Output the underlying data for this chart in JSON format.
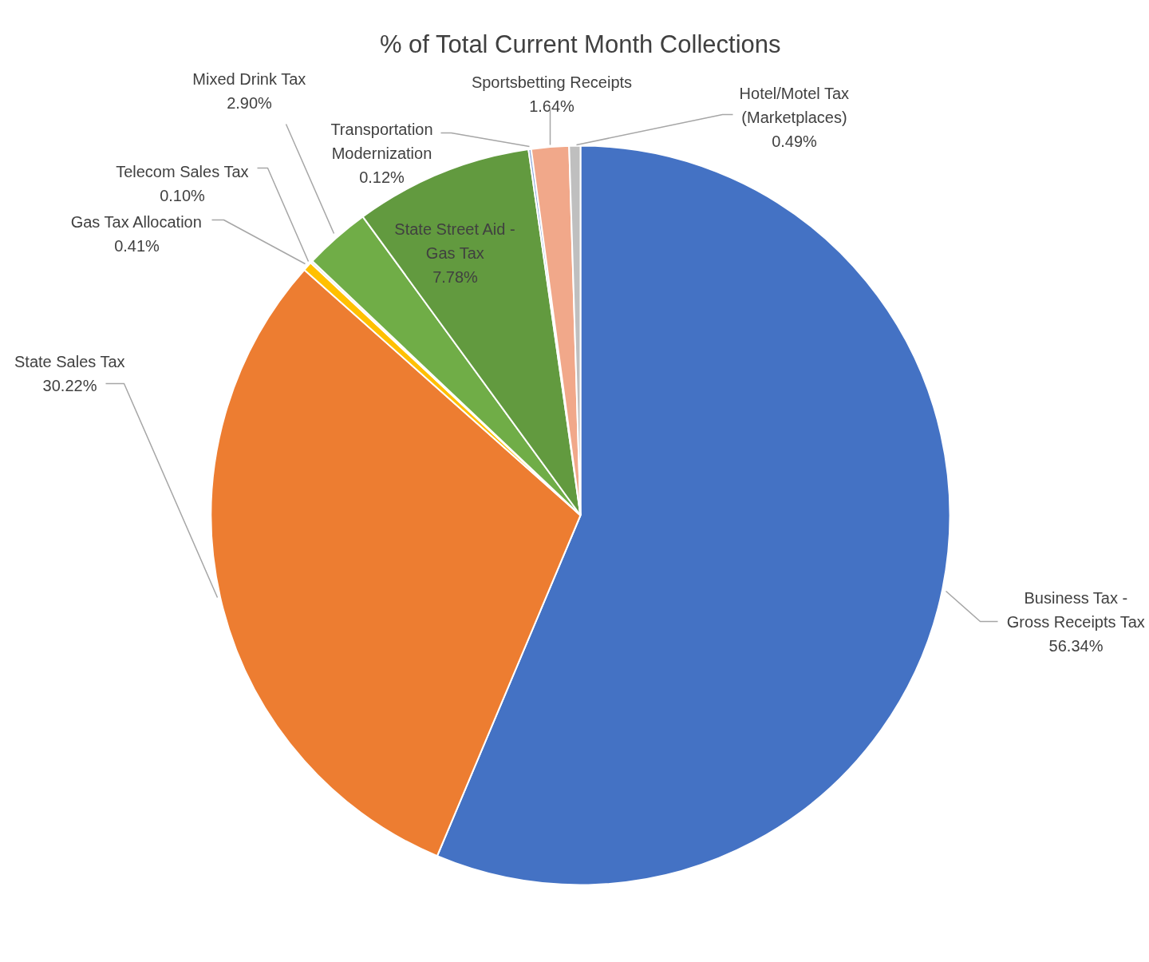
{
  "chart_data": {
    "type": "pie",
    "title": "% of Total Current Month Collections",
    "categories": [
      "Business Tax - Gross Receipts Tax",
      "State Sales Tax",
      "Gas Tax Allocation",
      "Telecom Sales Tax",
      "Mixed Drink Tax",
      "State Street Aid - Gas Tax",
      "Transportation Modernization",
      "Sportsbetting Receipts",
      "Hotel/Motel Tax (Marketplaces)"
    ],
    "values": [
      56.34,
      30.22,
      0.41,
      0.1,
      2.9,
      7.78,
      0.12,
      1.64,
      0.49
    ],
    "value_labels": [
      "56.34%",
      "30.22%",
      "0.41%",
      "0.10%",
      "2.90%",
      "7.78%",
      "0.12%",
      "1.64%",
      "0.49%"
    ],
    "colors": [
      "#4472c4",
      "#ed7d31",
      "#ffc000",
      "#e7e6e6",
      "#70ad47",
      "#629a3f",
      "#8faadc",
      "#f1a88a",
      "#bfbfbf"
    ]
  }
}
